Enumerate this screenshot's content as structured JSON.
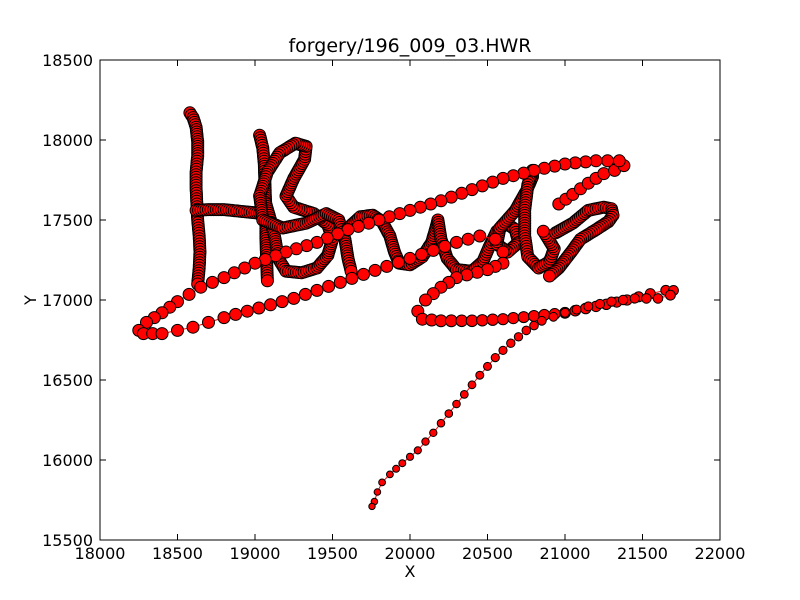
{
  "chart_data": {
    "type": "scatter",
    "title": "forgery/196_009_03.HWR",
    "xlabel": "X",
    "ylabel": "Y",
    "xlim": [
      18000,
      22000
    ],
    "ylim": [
      15500,
      18500
    ],
    "xticks": [
      18000,
      18500,
      19000,
      19500,
      20000,
      20500,
      21000,
      21500,
      22000
    ],
    "yticks": [
      15500,
      16000,
      16500,
      17000,
      17500,
      18000,
      18500
    ],
    "grid": false,
    "legend": "none",
    "marker_color": "#ff0000",
    "marker_edge_color": "#000000",
    "line_color": "#ff0000",
    "strokes": [
      [
        [
          18580,
          18170
        ],
        [
          18600,
          18140
        ],
        [
          18620,
          18080
        ],
        [
          18630,
          17990
        ],
        [
          18630,
          17900
        ],
        [
          18620,
          17800
        ],
        [
          18620,
          17700
        ],
        [
          18625,
          17600
        ],
        [
          18630,
          17500
        ],
        [
          18640,
          17400
        ],
        [
          18645,
          17300
        ],
        [
          18640,
          17200
        ],
        [
          18630,
          17100
        ]
      ],
      [
        [
          18620,
          17560
        ],
        [
          18700,
          17565
        ],
        [
          18800,
          17565
        ],
        [
          18900,
          17555
        ],
        [
          19000,
          17545
        ],
        [
          19060,
          17540
        ]
      ],
      [
        [
          19030,
          18030
        ],
        [
          19050,
          17950
        ],
        [
          19060,
          17850
        ],
        [
          19065,
          17700
        ],
        [
          19070,
          17550
        ],
        [
          19070,
          17400
        ],
        [
          19075,
          17250
        ],
        [
          19080,
          17120
        ]
      ],
      [
        [
          19070,
          17600
        ],
        [
          19100,
          17500
        ],
        [
          19130,
          17380
        ],
        [
          19150,
          17260
        ],
        [
          19200,
          17180
        ],
        [
          19300,
          17170
        ],
        [
          19400,
          17200
        ],
        [
          19470,
          17280
        ],
        [
          19500,
          17380
        ],
        [
          19470,
          17470
        ],
        [
          19380,
          17540
        ],
        [
          19250,
          17580
        ],
        [
          19200,
          17650
        ],
        [
          19250,
          17760
        ],
        [
          19320,
          17880
        ],
        [
          19330,
          17960
        ],
        [
          19260,
          17980
        ],
        [
          19160,
          17920
        ],
        [
          19080,
          17800
        ],
        [
          19030,
          17650
        ],
        [
          19050,
          17500
        ],
        [
          19180,
          17450
        ],
        [
          19330,
          17480
        ],
        [
          19460,
          17540
        ],
        [
          19540,
          17500
        ],
        [
          19580,
          17380
        ],
        [
          19600,
          17260
        ],
        [
          19620,
          17180
        ]
      ],
      [
        [
          19600,
          17450
        ],
        [
          19680,
          17520
        ],
        [
          19760,
          17530
        ],
        [
          19820,
          17490
        ],
        [
          19870,
          17400
        ],
        [
          19900,
          17300
        ],
        [
          19930,
          17230
        ],
        [
          20000,
          17220
        ],
        [
          20080,
          17270
        ],
        [
          20140,
          17360
        ],
        [
          20170,
          17460
        ],
        [
          20180,
          17500
        ],
        [
          20200,
          17380
        ],
        [
          20240,
          17260
        ],
        [
          20300,
          17190
        ],
        [
          20400,
          17180
        ],
        [
          20470,
          17240
        ],
        [
          20510,
          17330
        ],
        [
          20560,
          17430
        ],
        [
          20620,
          17480
        ],
        [
          20680,
          17440
        ],
        [
          20700,
          17360
        ],
        [
          20630,
          17300
        ],
        [
          20560,
          17350
        ],
        [
          20580,
          17450
        ],
        [
          20680,
          17560
        ],
        [
          20750,
          17680
        ],
        [
          20790,
          17770
        ],
        [
          20790,
          17810
        ],
        [
          20760,
          17720
        ],
        [
          20740,
          17560
        ],
        [
          20740,
          17400
        ],
        [
          20760,
          17270
        ],
        [
          20830,
          17200
        ],
        [
          20900,
          17240
        ],
        [
          20930,
          17320
        ],
        [
          20880,
          17400
        ],
        [
          20860,
          17430
        ]
      ],
      [
        [
          20940,
          17420
        ],
        [
          21050,
          17480
        ],
        [
          21150,
          17560
        ],
        [
          21250,
          17580
        ],
        [
          21300,
          17570
        ],
        [
          21310,
          17530
        ],
        [
          21280,
          17490
        ],
        [
          21200,
          17440
        ],
        [
          21100,
          17380
        ],
        [
          21040,
          17300
        ],
        [
          20960,
          17200
        ],
        [
          20900,
          17150
        ]
      ],
      [
        [
          20960,
          17600
        ],
        [
          21050,
          17660
        ],
        [
          21150,
          17730
        ],
        [
          21250,
          17790
        ],
        [
          21320,
          17810
        ],
        [
          21380,
          17840
        ],
        [
          21350,
          17870
        ],
        [
          21200,
          17870
        ],
        [
          21000,
          17850
        ],
        [
          20800,
          17810
        ],
        [
          20600,
          17760
        ],
        [
          20400,
          17690
        ],
        [
          20200,
          17620
        ],
        [
          20000,
          17560
        ],
        [
          19800,
          17500
        ],
        [
          19600,
          17440
        ],
        [
          19400,
          17360
        ],
        [
          19200,
          17300
        ],
        [
          19000,
          17230
        ],
        [
          18800,
          17140
        ],
        [
          18650,
          17080
        ],
        [
          18500,
          16990
        ],
        [
          18400,
          16920
        ],
        [
          18300,
          16860
        ],
        [
          18250,
          16810
        ],
        [
          18280,
          16790
        ],
        [
          18400,
          16790
        ],
        [
          18500,
          16810
        ],
        [
          18600,
          16830
        ],
        [
          18700,
          16860
        ],
        [
          18800,
          16890
        ],
        [
          18950,
          16930
        ],
        [
          19100,
          16970
        ],
        [
          19250,
          17010
        ],
        [
          19400,
          17060
        ],
        [
          19550,
          17110
        ],
        [
          19700,
          17160
        ],
        [
          19850,
          17210
        ],
        [
          20000,
          17260
        ],
        [
          20150,
          17310
        ],
        [
          20300,
          17360
        ],
        [
          20450,
          17400
        ],
        [
          20550,
          17380
        ],
        [
          20600,
          17300
        ],
        [
          20600,
          17230
        ],
        [
          20500,
          17190
        ],
        [
          20300,
          17140
        ],
        [
          20200,
          17080
        ],
        [
          20100,
          17000
        ],
        [
          20050,
          16930
        ],
        [
          20080,
          16880
        ],
        [
          20200,
          16870
        ],
        [
          20400,
          16870
        ],
        [
          20600,
          16880
        ],
        [
          20800,
          16900
        ],
        [
          21000,
          16920
        ],
        [
          21200,
          16960
        ],
        [
          21400,
          17000
        ],
        [
          21550,
          17040
        ],
        [
          21650,
          17060
        ],
        [
          21700,
          17060
        ],
        [
          21680,
          17030
        ],
        [
          21600,
          17010
        ],
        [
          21450,
          17010
        ],
        [
          21300,
          16990
        ],
        [
          21150,
          16960
        ],
        [
          21000,
          16920
        ],
        [
          20850,
          16870
        ],
        [
          20750,
          16810
        ],
        [
          20650,
          16730
        ],
        [
          20550,
          16640
        ],
        [
          20450,
          16530
        ],
        [
          20350,
          16410
        ],
        [
          20250,
          16290
        ],
        [
          20150,
          16170
        ],
        [
          20050,
          16060
        ],
        [
          19950,
          15980
        ],
        [
          19870,
          15910
        ],
        [
          19820,
          15860
        ],
        [
          19790,
          15800
        ],
        [
          19770,
          15740
        ],
        [
          19755,
          15710
        ]
      ]
    ]
  }
}
